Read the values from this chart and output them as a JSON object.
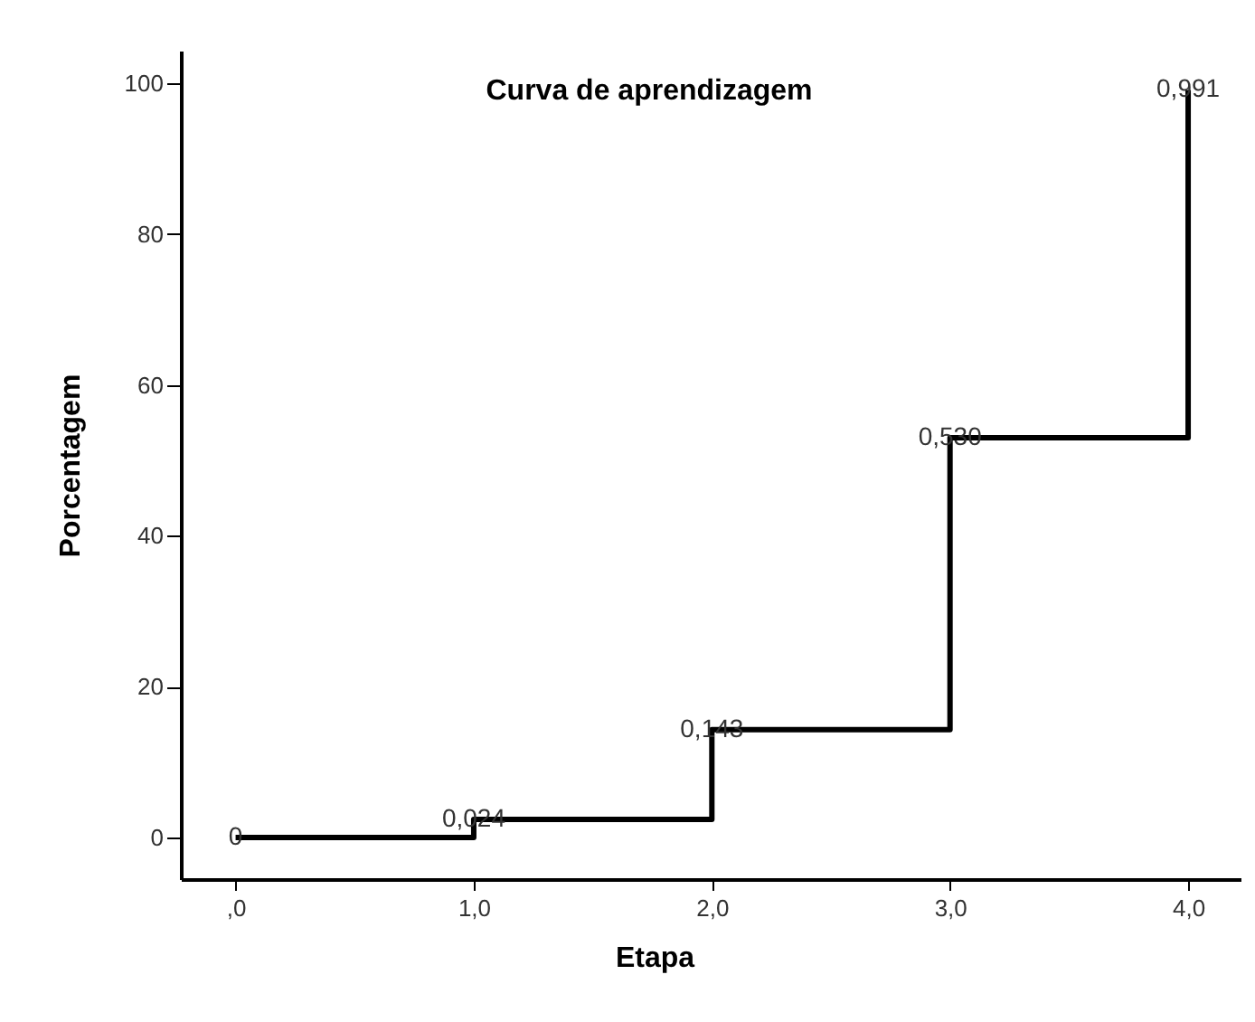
{
  "chart_data": {
    "type": "step",
    "title": "Curva de aprendizagem",
    "xlabel": "Etapa",
    "ylabel": "Porcentagem",
    "x": [
      0,
      1,
      2,
      3,
      4
    ],
    "series": [
      {
        "color": "#000000",
        "values": [
          0,
          2.4,
          14.3,
          53.0,
          99.1
        ]
      }
    ],
    "annotations": [
      {
        "text": "0",
        "x": 0,
        "y": 0
      },
      {
        "text": "0,024",
        "x": 1,
        "y": 2.4
      },
      {
        "text": "0,143",
        "x": 2,
        "y": 14.3
      },
      {
        "text": "0,530",
        "x": 3,
        "y": 53.0
      },
      {
        "text": "0,991",
        "x": 4,
        "y": 99.1
      }
    ],
    "xlim": [
      -0.23,
      4.22
    ],
    "ylim": [
      -5.5,
      104.3
    ],
    "xticks": [
      {
        "value": 0,
        "label": ",0"
      },
      {
        "value": 1,
        "label": "1,0"
      },
      {
        "value": 2,
        "label": "2,0"
      },
      {
        "value": 3,
        "label": "3,0"
      },
      {
        "value": 4,
        "label": "4,0"
      }
    ],
    "yticks": [
      0,
      20,
      40,
      60,
      80,
      100
    ],
    "line_style": "solid"
  }
}
